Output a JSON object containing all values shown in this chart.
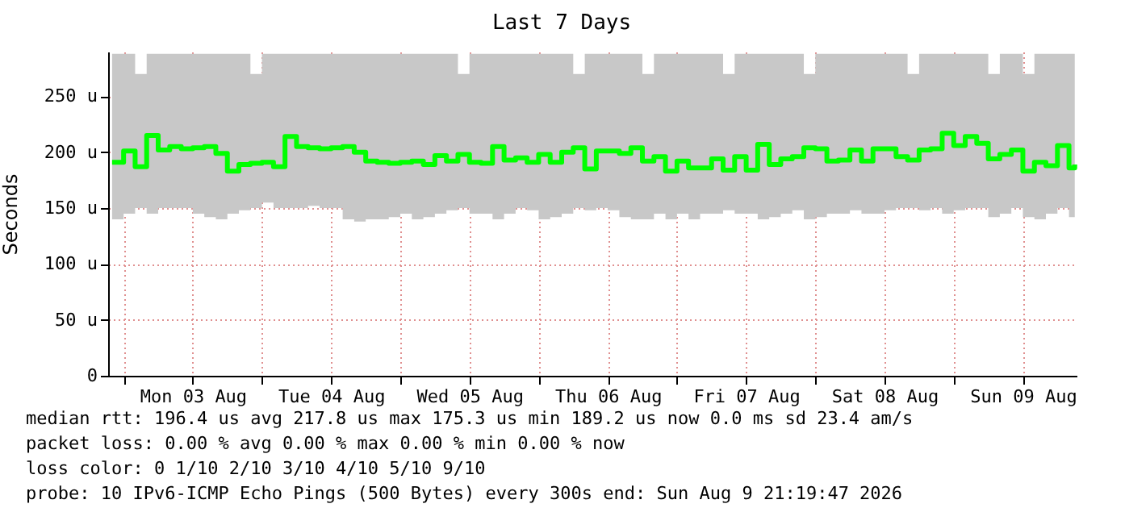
{
  "chart_data": {
    "type": "step",
    "title": "Last 7 Days",
    "ylabel": "Seconds",
    "xlim": [
      "2026-08-02T21:19",
      "2026-08-09T21:19"
    ],
    "xticks": [
      {
        "value": "2026-08-03T00:00",
        "label": null
      },
      {
        "value": "2026-08-03T12:00",
        "label": "Mon 03 Aug"
      },
      {
        "value": "2026-08-04T00:00",
        "label": null
      },
      {
        "value": "2026-08-04T12:00",
        "label": "Tue 04 Aug"
      },
      {
        "value": "2026-08-05T00:00",
        "label": null
      },
      {
        "value": "2026-08-05T12:00",
        "label": "Wed 05 Aug"
      },
      {
        "value": "2026-08-06T00:00",
        "label": null
      },
      {
        "value": "2026-08-06T12:00",
        "label": "Thu 06 Aug"
      },
      {
        "value": "2026-08-07T00:00",
        "label": null
      },
      {
        "value": "2026-08-07T12:00",
        "label": "Fri 07 Aug"
      },
      {
        "value": "2026-08-08T00:00",
        "label": null
      },
      {
        "value": "2026-08-08T12:00",
        "label": "Sat 08 Aug"
      },
      {
        "value": "2026-08-09T00:00",
        "label": null
      },
      {
        "value": "2026-08-09T12:00",
        "label": "Sun 09 Aug"
      }
    ],
    "ylim": [
      0,
      290
    ],
    "yticks": [
      {
        "value": 0,
        "label": "0"
      },
      {
        "value": 50,
        "label": "50 u"
      },
      {
        "value": 100,
        "label": "100 u"
      },
      {
        "value": 150,
        "label": "150 u"
      },
      {
        "value": 200,
        "label": "200 u"
      },
      {
        "value": 250,
        "label": "250 u"
      }
    ],
    "grid": true,
    "x": [
      "2026-08-02T22:00",
      "2026-08-03T00:00",
      "2026-08-03T02:00",
      "2026-08-03T04:00",
      "2026-08-03T06:00",
      "2026-08-03T08:00",
      "2026-08-03T10:00",
      "2026-08-03T12:00",
      "2026-08-03T14:00",
      "2026-08-03T16:00",
      "2026-08-03T18:00",
      "2026-08-03T20:00",
      "2026-08-03T22:00",
      "2026-08-04T00:00",
      "2026-08-04T02:00",
      "2026-08-04T04:00",
      "2026-08-04T06:00",
      "2026-08-04T08:00",
      "2026-08-04T10:00",
      "2026-08-04T12:00",
      "2026-08-04T14:00",
      "2026-08-04T16:00",
      "2026-08-04T18:00",
      "2026-08-04T20:00",
      "2026-08-04T22:00",
      "2026-08-05T00:00",
      "2026-08-05T02:00",
      "2026-08-05T04:00",
      "2026-08-05T06:00",
      "2026-08-05T08:00",
      "2026-08-05T10:00",
      "2026-08-05T12:00",
      "2026-08-05T14:00",
      "2026-08-05T16:00",
      "2026-08-05T18:00",
      "2026-08-05T20:00",
      "2026-08-05T22:00",
      "2026-08-06T00:00",
      "2026-08-06T02:00",
      "2026-08-06T04:00",
      "2026-08-06T06:00",
      "2026-08-06T08:00",
      "2026-08-06T10:00",
      "2026-08-06T12:00",
      "2026-08-06T14:00",
      "2026-08-06T16:00",
      "2026-08-06T18:00",
      "2026-08-06T20:00",
      "2026-08-06T22:00",
      "2026-08-07T00:00",
      "2026-08-07T02:00",
      "2026-08-07T04:00",
      "2026-08-07T06:00",
      "2026-08-07T08:00",
      "2026-08-07T10:00",
      "2026-08-07T12:00",
      "2026-08-07T14:00",
      "2026-08-07T16:00",
      "2026-08-07T18:00",
      "2026-08-07T20:00",
      "2026-08-07T22:00",
      "2026-08-08T00:00",
      "2026-08-08T02:00",
      "2026-08-08T04:00",
      "2026-08-08T06:00",
      "2026-08-08T08:00",
      "2026-08-08T10:00",
      "2026-08-08T12:00",
      "2026-08-08T14:00",
      "2026-08-08T16:00",
      "2026-08-08T18:00",
      "2026-08-08T20:00",
      "2026-08-08T22:00",
      "2026-08-09T00:00",
      "2026-08-09T02:00",
      "2026-08-09T04:00",
      "2026-08-09T06:00",
      "2026-08-09T08:00",
      "2026-08-09T10:00",
      "2026-08-09T12:00",
      "2026-08-09T14:00",
      "2026-08-09T16:00",
      "2026-08-09T18:00",
      "2026-08-09T20:00",
      "2026-08-09T21:00"
    ],
    "series": [
      {
        "color": "#00ff00",
        "values": [
          191,
          201,
          187,
          215,
          202,
          205,
          203,
          204,
          205,
          199,
          183,
          189,
          190,
          191,
          187,
          214,
          205,
          204,
          203,
          204,
          205,
          200,
          192,
          191,
          190,
          191,
          192,
          189,
          197,
          192,
          198,
          191,
          190,
          205,
          193,
          195,
          191,
          198,
          191,
          200,
          204,
          185,
          201,
          201,
          199,
          204,
          192,
          196,
          183,
          192,
          186,
          186,
          194,
          184,
          196,
          184,
          207,
          189,
          194,
          196,
          204,
          203,
          192,
          193,
          202,
          192,
          203,
          203,
          196,
          193,
          202,
          203,
          217,
          206,
          214,
          208,
          194,
          198,
          202,
          183,
          191,
          188,
          206,
          186,
          189
        ],
        "lower": [
          140,
          145,
          150,
          145,
          150,
          150,
          150,
          145,
          142,
          140,
          145,
          148,
          150,
          155,
          150,
          150,
          150,
          152,
          150,
          150,
          140,
          138,
          140,
          140,
          142,
          145,
          140,
          142,
          145,
          148,
          150,
          145,
          145,
          140,
          145,
          150,
          148,
          140,
          142,
          145,
          150,
          148,
          150,
          148,
          142,
          140,
          140,
          145,
          140,
          145,
          140,
          145,
          145,
          148,
          145,
          145,
          140,
          142,
          145,
          148,
          140,
          142,
          145,
          145,
          148,
          145,
          145,
          148,
          150,
          150,
          148,
          150,
          145,
          148,
          150,
          150,
          142,
          145,
          150,
          142,
          140,
          145,
          150,
          142,
          145
        ],
        "upper": [
          288,
          288,
          270,
          288,
          288,
          288,
          288,
          288,
          288,
          288,
          288,
          288,
          270,
          288,
          288,
          288,
          288,
          288,
          288,
          288,
          288,
          288,
          288,
          288,
          288,
          288,
          288,
          288,
          288,
          288,
          270,
          288,
          288,
          288,
          288,
          288,
          288,
          288,
          288,
          288,
          270,
          288,
          288,
          288,
          288,
          288,
          270,
          288,
          288,
          288,
          288,
          288,
          288,
          270,
          288,
          288,
          288,
          288,
          288,
          288,
          270,
          288,
          288,
          288,
          288,
          288,
          288,
          288,
          288,
          270,
          288,
          288,
          288,
          288,
          288,
          288,
          270,
          288,
          288,
          270,
          288,
          288,
          288,
          288,
          288
        ]
      }
    ],
    "annotations": [
      "median rtt:  196.4 us avg  217.8 us max  175.3 us min  189.2 us now  0.0 ms sd  23.4   am/s",
      "packet loss: 0.00 % avg  0.00 % max  0.00 % min  0.00 % now",
      "loss color:  0  1/10  2/10  3/10  4/10  5/10  9/10",
      "probe:       10 IPv6-ICMP Echo Pings (500 Bytes) every 300s       end: Sun Aug  9 21:19:47 2026"
    ]
  }
}
